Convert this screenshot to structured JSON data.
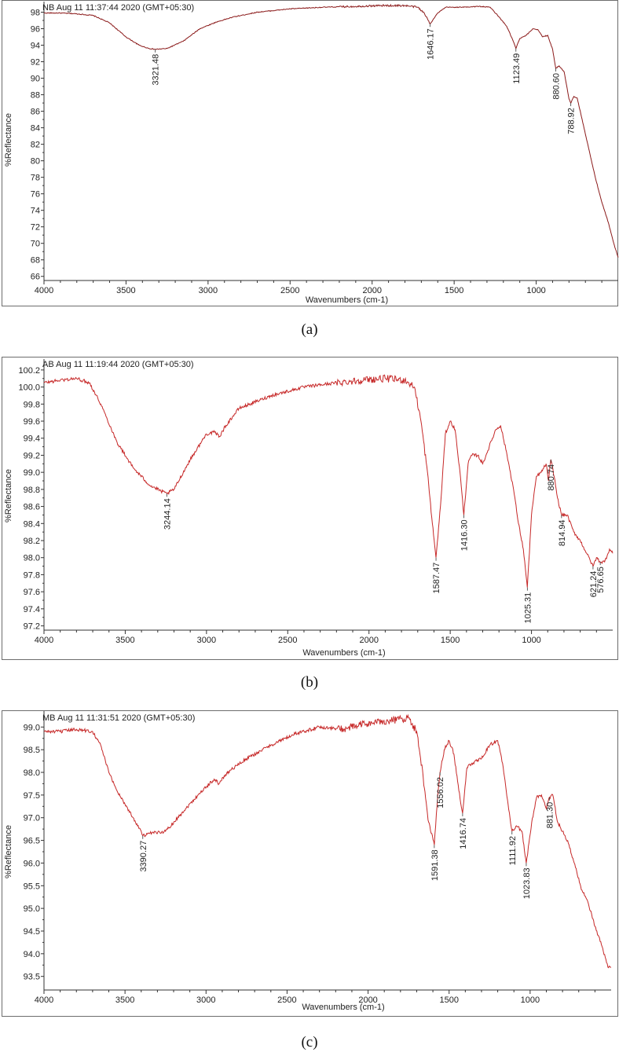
{
  "figure": {
    "panels": [
      {
        "caption": "(a)"
      },
      {
        "caption": "(b)"
      },
      {
        "caption": "(c)"
      }
    ]
  },
  "chart_data": [
    {
      "type": "line",
      "header": "NB Aug 11 11:37:44 2020 (GMT+05:30)",
      "xlabel": "Wavenumbers (cm-1)",
      "ylabel": "%Reflectance",
      "xlim": [
        4000,
        500
      ],
      "ylim": [
        65.5,
        99
      ],
      "xticks": [
        4000,
        3500,
        3000,
        2500,
        2000,
        1500,
        1000
      ],
      "yticks": [
        98,
        96,
        94,
        92,
        90,
        88,
        86,
        84,
        82,
        80,
        78,
        76,
        74,
        72,
        70,
        68,
        66
      ],
      "ytick_decimals": 0,
      "line_color": "#8b1a1a",
      "series": [
        {
          "x": [
            4000,
            3900,
            3800,
            3700,
            3600,
            3500,
            3420,
            3360,
            3321.48,
            3250,
            3150,
            3050,
            2950,
            2850,
            2700,
            2500,
            2300,
            2100,
            1950,
            1800,
            1720,
            1680,
            1646.17,
            1600,
            1550,
            1450,
            1350,
            1280,
            1230,
            1180,
            1140,
            1123.49,
            1100,
            1060,
            1020,
            990,
            960,
            930,
            900,
            880.6,
            860,
            830,
            800,
            788.92,
            770,
            750,
            720,
            680,
            640,
            600,
            560,
            520,
            500
          ],
          "y": [
            97.9,
            97.9,
            97.8,
            97.6,
            96.7,
            95.0,
            94.0,
            93.6,
            93.5,
            93.6,
            94.5,
            96.0,
            96.8,
            97.4,
            98.0,
            98.4,
            98.6,
            98.7,
            98.8,
            98.8,
            98.6,
            97.8,
            96.6,
            97.9,
            98.6,
            98.6,
            98.7,
            98.6,
            97.5,
            96.3,
            94.5,
            93.6,
            94.8,
            95.2,
            96.0,
            95.9,
            95.0,
            95.2,
            93.5,
            91.2,
            91.5,
            90.8,
            87.5,
            87.0,
            87.8,
            87.6,
            85.0,
            81.5,
            78.0,
            75.0,
            72.5,
            69.5,
            68.3
          ]
        }
      ],
      "peaks": [
        {
          "x": 3321.48,
          "y": 93.5,
          "label": "3321.48"
        },
        {
          "x": 1646.17,
          "y": 96.6,
          "label": "1646.17"
        },
        {
          "x": 1123.49,
          "y": 93.6,
          "label": "1123.49"
        },
        {
          "x": 880.6,
          "y": 91.2,
          "label": "880.60"
        },
        {
          "x": 788.92,
          "y": 87.0,
          "label": "788.92"
        }
      ]
    },
    {
      "type": "line",
      "header": "AB Aug 11 11:19:44 2020 (GMT+05:30)",
      "xlabel": "Wavenumbers (cm-1)",
      "ylabel": "%Reflectance",
      "xlim": [
        4000,
        500
      ],
      "ylim": [
        97.15,
        100.3
      ],
      "xticks": [
        4000,
        3500,
        3000,
        2500,
        2000,
        1500,
        1000
      ],
      "yticks": [
        100.2,
        100.0,
        99.8,
        99.6,
        99.4,
        99.2,
        99.0,
        98.8,
        98.6,
        98.4,
        98.2,
        98.0,
        97.8,
        97.6,
        97.4,
        97.2
      ],
      "ytick_decimals": 1,
      "line_color": "#c62828",
      "series": [
        {
          "x": [
            4000,
            3900,
            3800,
            3720,
            3650,
            3550,
            3450,
            3350,
            3280,
            3244.14,
            3200,
            3100,
            3000,
            2950,
            2920,
            2880,
            2800,
            2600,
            2400,
            2200,
            2050,
            1900,
            1780,
            1720,
            1680,
            1640,
            1610,
            1587.47,
            1560,
            1530,
            1500,
            1470,
            1440,
            1416.3,
            1390,
            1370,
            1330,
            1300,
            1260,
            1220,
            1190,
            1150,
            1110,
            1080,
            1050,
            1025.31,
            1000,
            970,
            940,
            910,
            895,
            880.74,
            860,
            840,
            814.94,
            780,
            740,
            700,
            660,
            621.24,
            600,
            576.65,
            550,
            520,
            500
          ],
          "y": [
            100.05,
            100.08,
            100.1,
            100.05,
            99.8,
            99.35,
            99.05,
            98.85,
            98.78,
            98.75,
            98.8,
            99.15,
            99.45,
            99.47,
            99.42,
            99.55,
            99.75,
            99.9,
            100.0,
            100.05,
            100.08,
            100.1,
            100.08,
            100.0,
            99.6,
            99.0,
            98.4,
            98.0,
            98.6,
            99.45,
            99.6,
            99.5,
            99.0,
            98.5,
            99.1,
            99.2,
            99.2,
            99.1,
            99.3,
            99.5,
            99.55,
            99.2,
            98.8,
            98.4,
            98.1,
            97.65,
            98.5,
            98.95,
            99.0,
            99.1,
            98.9,
            99.15,
            98.95,
            98.7,
            98.5,
            98.5,
            98.3,
            98.2,
            98.05,
            97.9,
            98.0,
            97.95,
            97.95,
            98.1,
            98.05
          ]
        }
      ],
      "peaks": [
        {
          "x": 3244.14,
          "y": 98.75,
          "label": "3244.14"
        },
        {
          "x": 1587.47,
          "y": 98.0,
          "label": "1587.47"
        },
        {
          "x": 1416.3,
          "y": 98.5,
          "label": "1416.30"
        },
        {
          "x": 1025.31,
          "y": 97.65,
          "label": "1025.31"
        },
        {
          "x": 880.74,
          "y": 99.15,
          "label": "880.74"
        },
        {
          "x": 814.94,
          "y": 98.5,
          "label": "814.94"
        },
        {
          "x": 621.24,
          "y": 97.9,
          "label": "621.24"
        },
        {
          "x": 576.65,
          "y": 97.95,
          "label": "576.65"
        }
      ]
    },
    {
      "type": "line",
      "header": "MB Aug 11 11:31:51 2020 (GMT+05:30)",
      "xlabel": "Wavenumbers (cm-1)",
      "ylabel": "%Reflectance",
      "xlim": [
        4000,
        500
      ],
      "ylim": [
        93.2,
        99.3
      ],
      "xticks": [
        4000,
        3500,
        3000,
        2500,
        2000,
        1500,
        1000
      ],
      "yticks": [
        99.0,
        98.5,
        98.0,
        97.5,
        97.0,
        96.5,
        96.0,
        95.5,
        95.0,
        94.5,
        94.0,
        93.5
      ],
      "ytick_decimals": 1,
      "line_color": "#c62828",
      "series": [
        {
          "x": [
            4000,
            3900,
            3800,
            3700,
            3650,
            3600,
            3550,
            3500,
            3450,
            3400,
            3390.27,
            3350,
            3250,
            3150,
            3050,
            2950,
            2920,
            2880,
            2850,
            2750,
            2600,
            2450,
            2300,
            2150,
            2050,
            1950,
            1850,
            1750,
            1700,
            1660,
            1630,
            1591.38,
            1570,
            1556.02,
            1530,
            1500,
            1470,
            1440,
            1416.74,
            1390,
            1360,
            1300,
            1250,
            1200,
            1170,
            1140,
            1111.92,
            1080,
            1050,
            1023.83,
            990,
            960,
            930,
            900,
            881.3,
            860,
            830,
            800,
            760,
            720,
            680,
            640,
            600,
            560,
            520,
            500
          ],
          "y": [
            98.9,
            98.9,
            98.95,
            98.9,
            98.6,
            98.0,
            97.6,
            97.3,
            97.0,
            96.7,
            96.6,
            96.65,
            96.7,
            97.1,
            97.5,
            97.85,
            97.75,
            97.95,
            98.05,
            98.3,
            98.6,
            98.85,
            99.0,
            98.95,
            99.05,
            99.1,
            99.15,
            99.2,
            98.9,
            97.9,
            96.95,
            96.4,
            97.5,
            98.0,
            98.5,
            98.7,
            98.4,
            97.6,
            97.1,
            98.1,
            98.2,
            98.3,
            98.6,
            98.7,
            98.2,
            97.4,
            96.7,
            96.8,
            96.7,
            96.0,
            96.9,
            97.45,
            97.5,
            97.2,
            97.45,
            97.5,
            96.9,
            96.7,
            96.4,
            95.9,
            95.4,
            95.1,
            94.6,
            94.2,
            93.7,
            93.7
          ]
        }
      ],
      "peaks": [
        {
          "x": 3390.27,
          "y": 96.6,
          "label": "3390.27"
        },
        {
          "x": 1591.38,
          "y": 96.4,
          "label": "1591.38"
        },
        {
          "x": 1556.02,
          "y": 98.0,
          "label": "1556.02"
        },
        {
          "x": 1416.74,
          "y": 97.1,
          "label": "1416.74"
        },
        {
          "x": 1111.92,
          "y": 96.7,
          "label": "1111.92"
        },
        {
          "x": 1023.83,
          "y": 96.0,
          "label": "1023.83"
        },
        {
          "x": 881.3,
          "y": 97.45,
          "label": "881.30"
        }
      ]
    }
  ]
}
